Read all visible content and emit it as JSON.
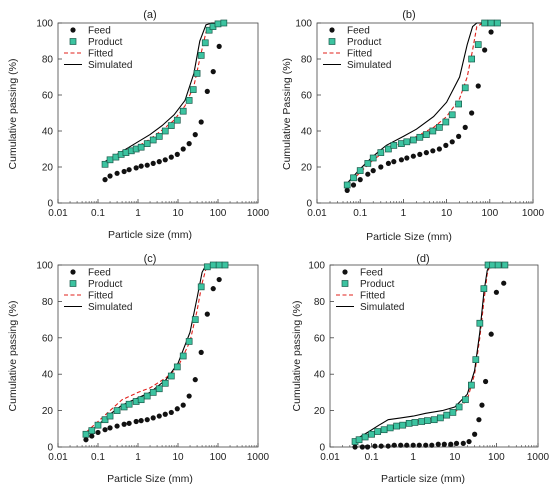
{
  "colors": {
    "feed": "#111111",
    "product_fill": "#3cc3a0",
    "product_stroke": "#1a5a4a",
    "fitted": "#e0201b",
    "simulated": "#000000",
    "axis": "#444444"
  },
  "chart_data": [
    {
      "type": "scatter",
      "panel_label": "(a)",
      "xlabel": "Particle size (mm)",
      "ylabel": "Cumulative passing (%)",
      "xscale": "log",
      "xlim": [
        0.01,
        1000
      ],
      "ylim": [
        0,
        100
      ],
      "xticks": [
        "0.01",
        "0.1",
        "1",
        "10",
        "100",
        "1000"
      ],
      "yticks": [
        "0",
        "20",
        "40",
        "60",
        "80",
        "100"
      ],
      "grid": false,
      "legend_position": "top-left",
      "legend": [
        "Feed",
        "Product",
        "Fitted",
        "Simulated"
      ],
      "series": [
        {
          "name": "Feed",
          "kind": "points",
          "marker": "circle",
          "x": [
            0.15,
            0.2,
            0.3,
            0.45,
            0.6,
            0.9,
            1.2,
            1.7,
            2.4,
            3.4,
            4.8,
            6.8,
            9.6,
            13.5,
            19,
            27,
            38,
            54,
            76,
            107
          ],
          "y": [
            13,
            15,
            16.5,
            17.5,
            18.5,
            19.5,
            20.5,
            21,
            22,
            23,
            24,
            25.5,
            27,
            30,
            33,
            38,
            45,
            62,
            73,
            87
          ]
        },
        {
          "name": "Product",
          "kind": "points",
          "marker": "square",
          "x": [
            0.15,
            0.2,
            0.28,
            0.38,
            0.5,
            0.68,
            0.9,
            1.2,
            1.7,
            2.4,
            3.4,
            4.8,
            6.8,
            9.6,
            13.5,
            19,
            24,
            30,
            38,
            48,
            60,
            75,
            100,
            140
          ],
          "y": [
            21.5,
            24,
            25.5,
            27,
            28,
            29,
            30,
            31,
            33,
            35,
            37,
            40,
            43,
            46,
            51,
            57,
            63,
            72,
            82,
            89,
            96,
            98,
            99.5,
            100
          ]
        },
        {
          "name": "Fitted",
          "kind": "line",
          "dash": "dashed",
          "x": [
            0.15,
            0.3,
            0.6,
            1,
            2,
            4,
            8,
            15,
            25,
            35,
            50,
            70,
            100,
            140
          ],
          "y": [
            22,
            26,
            29,
            31.5,
            35.5,
            40.5,
            46,
            54,
            65,
            80,
            95,
            99,
            100,
            100
          ]
        },
        {
          "name": "Simulated",
          "kind": "line",
          "dash": "solid",
          "x": [
            0.15,
            0.3,
            0.6,
            1,
            2,
            4,
            8,
            15,
            25,
            35,
            50,
            70,
            100,
            140
          ],
          "y": [
            23,
            27,
            31,
            34,
            38,
            43,
            49,
            57,
            72,
            90,
            99,
            100,
            100,
            100
          ]
        }
      ]
    },
    {
      "type": "scatter",
      "panel_label": "(b)",
      "xlabel": "Particle Size (mm)",
      "ylabel": "Cumulative Passing (%)",
      "xscale": "log",
      "xlim": [
        0.01,
        1000
      ],
      "ylim": [
        0,
        100
      ],
      "xticks": [
        "0.01",
        "0.1",
        "1",
        "10",
        "100",
        "1000"
      ],
      "yticks": [
        "0",
        "20",
        "40",
        "60",
        "80",
        "100"
      ],
      "grid": false,
      "legend_position": "top-left",
      "legend": [
        "Feed",
        "Product",
        "Fitted",
        "Simulated"
      ],
      "series": [
        {
          "name": "Feed",
          "kind": "points",
          "marker": "circle",
          "x": [
            0.05,
            0.07,
            0.1,
            0.15,
            0.2,
            0.3,
            0.45,
            0.6,
            0.9,
            1.2,
            1.7,
            2.4,
            3.4,
            4.8,
            6.8,
            9.6,
            13.5,
            19,
            27,
            38,
            54,
            76,
            107
          ],
          "y": [
            7,
            10,
            13,
            16,
            18,
            20,
            22,
            23,
            24,
            25,
            26,
            27,
            28,
            29,
            30,
            32,
            34,
            37,
            42,
            50,
            65,
            85,
            95
          ]
        },
        {
          "name": "Product",
          "kind": "points",
          "marker": "square",
          "x": [
            0.05,
            0.07,
            0.1,
            0.15,
            0.2,
            0.3,
            0.45,
            0.6,
            0.9,
            1.2,
            1.7,
            2.4,
            3.4,
            4.8,
            6.8,
            9.6,
            13.5,
            19,
            27,
            38,
            54,
            76,
            107,
            150
          ],
          "y": [
            10,
            14,
            18,
            22,
            25,
            28,
            30,
            32,
            33,
            34,
            35,
            36.5,
            38,
            40,
            42,
            45,
            49,
            55,
            64,
            80,
            88,
            100,
            100,
            100
          ]
        },
        {
          "name": "Fitted",
          "kind": "line",
          "dash": "dashed",
          "x": [
            0.05,
            0.1,
            0.2,
            0.4,
            1,
            2,
            5,
            10,
            20,
            30,
            40,
            50,
            70,
            100,
            150
          ],
          "y": [
            10,
            17,
            24,
            29,
            34,
            37,
            42,
            48,
            58,
            70,
            85,
            98,
            100,
            100,
            100
          ]
        },
        {
          "name": "Simulated",
          "kind": "line",
          "dash": "solid",
          "x": [
            0.05,
            0.1,
            0.2,
            0.4,
            1,
            2,
            5,
            10,
            20,
            30,
            40,
            50,
            70,
            100,
            150
          ],
          "y": [
            11,
            19,
            26,
            32,
            37,
            41,
            48,
            56,
            70,
            88,
            98,
            100,
            100,
            100,
            100
          ]
        }
      ]
    },
    {
      "type": "scatter",
      "panel_label": "(c)",
      "xlabel": "Particle Size (mm)",
      "ylabel": "Cumulative passing (%)",
      "xscale": "log",
      "xlim": [
        0.01,
        1000
      ],
      "ylim": [
        0,
        100
      ],
      "xticks": [
        "0.01",
        "0.1",
        "1",
        "10",
        "100",
        "1000"
      ],
      "yticks": [
        "0",
        "20",
        "40",
        "60",
        "80",
        "100"
      ],
      "grid": false,
      "legend_position": "top-left",
      "legend": [
        "Feed",
        "Product",
        "Fitted",
        "Simulated"
      ],
      "series": [
        {
          "name": "Feed",
          "kind": "points",
          "marker": "circle",
          "x": [
            0.05,
            0.07,
            0.1,
            0.15,
            0.2,
            0.3,
            0.45,
            0.6,
            0.9,
            1.2,
            1.7,
            2.4,
            3.4,
            4.8,
            6.8,
            9.6,
            13.5,
            19,
            27,
            38,
            54,
            76,
            107
          ],
          "y": [
            4,
            6,
            8,
            9.5,
            10.5,
            11.5,
            12.5,
            13,
            14,
            14.5,
            15,
            16,
            17,
            18,
            19,
            21,
            23,
            28,
            37,
            52,
            73,
            87,
            92
          ]
        },
        {
          "name": "Product",
          "kind": "points",
          "marker": "square",
          "x": [
            0.05,
            0.07,
            0.1,
            0.15,
            0.2,
            0.3,
            0.45,
            0.6,
            0.9,
            1.2,
            1.7,
            2.4,
            3.4,
            4.8,
            6.8,
            9.6,
            13.5,
            19,
            27,
            38,
            54,
            76,
            107,
            150
          ],
          "y": [
            7,
            9,
            12,
            15,
            17,
            20,
            22,
            23.5,
            25,
            26,
            28,
            30,
            32,
            35,
            39,
            44,
            50,
            58,
            70,
            88,
            99,
            100,
            100,
            100
          ]
        },
        {
          "name": "Fitted",
          "kind": "line",
          "dash": "dashed",
          "x": [
            0.05,
            0.1,
            0.2,
            0.4,
            1,
            2,
            5,
            10,
            20,
            30,
            40,
            50,
            70,
            100,
            150
          ],
          "y": [
            8,
            14,
            20,
            26,
            30,
            32.5,
            38,
            44,
            58,
            75,
            90,
            98,
            100,
            100,
            100
          ]
        },
        {
          "name": "Simulated",
          "kind": "line",
          "dash": "solid",
          "x": [
            0.05,
            0.1,
            0.2,
            0.4,
            1,
            2,
            5,
            10,
            20,
            30,
            40,
            50,
            70,
            100,
            150
          ],
          "y": [
            7,
            12,
            18,
            23,
            27,
            30,
            37,
            46,
            63,
            82,
            96,
            100,
            100,
            100,
            100
          ]
        }
      ]
    },
    {
      "type": "scatter",
      "panel_label": "(d)",
      "xlabel": "Particle size (mm)",
      "ylabel": "Cumulative passing (%)",
      "xscale": "log",
      "xlim": [
        0.01,
        1000
      ],
      "ylim": [
        0,
        100
      ],
      "xticks": [
        "0.01",
        "0.1",
        "1",
        "10",
        "100",
        "1000"
      ],
      "yticks": [
        "0",
        "20",
        "40",
        "60",
        "80",
        "100"
      ],
      "grid": false,
      "legend_position": "top-left",
      "legend": [
        "Feed",
        "Product",
        "Fitted",
        "Simulated"
      ],
      "series": [
        {
          "name": "Feed",
          "kind": "points",
          "marker": "circle",
          "x": [
            0.04,
            0.06,
            0.08,
            0.12,
            0.17,
            0.25,
            0.35,
            0.5,
            0.7,
            1,
            1.4,
            2,
            2.8,
            4,
            5.6,
            8,
            11,
            16,
            22,
            30,
            38,
            45,
            55,
            75,
            100,
            150
          ],
          "y": [
            0,
            0,
            0,
            0.5,
            0.5,
            0.5,
            1,
            1,
            1,
            1,
            1,
            1,
            1,
            1.5,
            1.5,
            1.5,
            2,
            2,
            3,
            7,
            15,
            23,
            36,
            62,
            85,
            90
          ]
        },
        {
          "name": "Product",
          "kind": "points",
          "marker": "square",
          "x": [
            0.04,
            0.05,
            0.07,
            0.1,
            0.14,
            0.2,
            0.28,
            0.4,
            0.56,
            0.8,
            1.1,
            1.6,
            2.2,
            3.2,
            4.5,
            6.4,
            9,
            12.7,
            18,
            25,
            32,
            40,
            50,
            63,
            80,
            110,
            160
          ],
          "y": [
            3,
            4,
            5.5,
            7,
            8.5,
            9.5,
            10.5,
            11.5,
            12,
            13,
            13.5,
            14,
            14.5,
            15,
            16,
            17.5,
            19,
            22,
            26,
            34,
            48,
            68,
            87,
            100,
            100,
            100,
            100
          ]
        },
        {
          "name": "Fitted",
          "kind": "line",
          "dash": "dashed",
          "x": [
            0.04,
            0.1,
            0.2,
            0.4,
            1,
            2,
            5,
            10,
            20,
            30,
            40,
            50,
            60,
            70,
            100,
            160
          ],
          "y": [
            3,
            7,
            10,
            12,
            14,
            15,
            17,
            19,
            26,
            40,
            60,
            80,
            95,
            100,
            100,
            100
          ]
        },
        {
          "name": "Simulated",
          "kind": "line",
          "dash": "solid",
          "x": [
            0.04,
            0.08,
            0.15,
            0.25,
            0.5,
            1,
            2,
            5,
            10,
            20,
            30,
            40,
            50,
            60,
            70,
            100,
            160
          ],
          "y": [
            4,
            8,
            12,
            15,
            16,
            17,
            18.5,
            20,
            22,
            29,
            42,
            63,
            85,
            97,
            100,
            100,
            100
          ]
        }
      ]
    }
  ]
}
